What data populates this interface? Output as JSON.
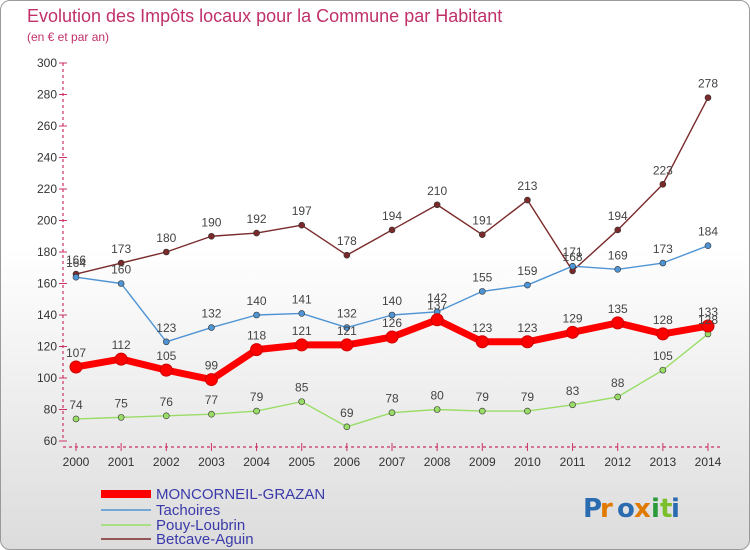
{
  "chart_data": {
    "type": "line",
    "title": "Evolution des Impôts locaux pour la Commune par Habitant",
    "subtitle": "(en € et par an)",
    "xlabel": "",
    "ylabel": "",
    "x": [
      "2000",
      "2001",
      "2002",
      "2003",
      "2004",
      "2005",
      "2006",
      "2007",
      "2008",
      "2009",
      "2010",
      "2011",
      "2012",
      "2013",
      "2014"
    ],
    "yticks": [
      60,
      80,
      100,
      120,
      140,
      160,
      180,
      200,
      220,
      240,
      260,
      280,
      300
    ],
    "ylim": [
      60,
      300
    ],
    "grid": false,
    "legend_position": "bottom-left",
    "series": [
      {
        "name": "MONCORNEIL-GRAZAN",
        "color": "#ff0000",
        "values": [
          107,
          112,
          105,
          99,
          118,
          121,
          121,
          126,
          137,
          123,
          123,
          129,
          135,
          128,
          133
        ]
      },
      {
        "name": "Tachoires",
        "color": "#4f94d4",
        "values": [
          164,
          160,
          123,
          132,
          140,
          141,
          132,
          140,
          142,
          155,
          159,
          171,
          169,
          173,
          184
        ]
      },
      {
        "name": "Pouy-Loubrin",
        "color": "#99dd66",
        "values": [
          74,
          75,
          76,
          77,
          79,
          85,
          69,
          78,
          80,
          79,
          79,
          83,
          88,
          105,
          128
        ]
      },
      {
        "name": "Betcave-Aguin",
        "color": "#7a2a2a",
        "values": [
          166,
          173,
          180,
          190,
          192,
          197,
          178,
          194,
          210,
          191,
          213,
          168,
          194,
          223,
          278
        ]
      }
    ]
  },
  "logo": {
    "text": "Proxiti"
  }
}
